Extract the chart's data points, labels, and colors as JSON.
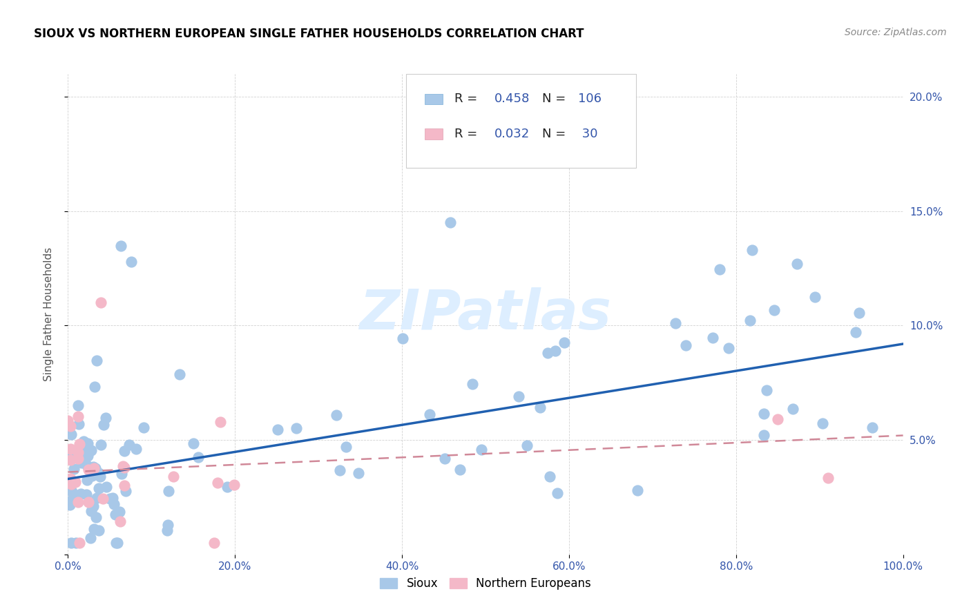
{
  "title": "SIOUX VS NORTHERN EUROPEAN SINGLE FATHER HOUSEHOLDS CORRELATION CHART",
  "source": "Source: ZipAtlas.com",
  "ylabel": "Single Father Households",
  "xlim": [
    0,
    1.0
  ],
  "ylim": [
    0,
    0.21
  ],
  "ytick_vals": [
    0.0,
    0.05,
    0.1,
    0.15,
    0.2
  ],
  "ytick_labels_right": [
    "",
    "5.0%",
    "10.0%",
    "15.0%",
    "20.0%"
  ],
  "xtick_vals": [
    0.0,
    0.2,
    0.4,
    0.6,
    0.8,
    1.0
  ],
  "xtick_labels": [
    "0.0%",
    "20.0%",
    "40.0%",
    "60.0%",
    "80.0%",
    "100.0%"
  ],
  "sioux_color": "#a8c8e8",
  "ne_color": "#f4b8c8",
  "trendline_sioux_color": "#2060b0",
  "trendline_ne_color": "#d08898",
  "watermark_text": "ZIPatlas",
  "watermark_color": "#ddeeff",
  "legend_r_sioux": "0.458",
  "legend_n_sioux": "106",
  "legend_r_ne": "0.032",
  "legend_n_ne": "30",
  "text_color": "#3355aa",
  "label_color": "#555555",
  "sioux_trendline_x0": 0.0,
  "sioux_trendline_y0": 0.033,
  "sioux_trendline_x1": 1.0,
  "sioux_trendline_y1": 0.092,
  "ne_trendline_x0": 0.0,
  "ne_trendline_y0": 0.036,
  "ne_trendline_x1": 1.0,
  "ne_trendline_y1": 0.052
}
